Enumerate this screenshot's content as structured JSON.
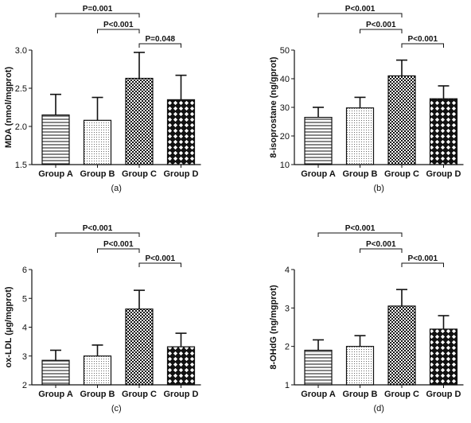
{
  "chart_data": [
    {
      "type": "bar",
      "panel_label": "(a)",
      "ylabel": "MDA (nmol/mgprot)",
      "categories": [
        "Group A",
        "Group B",
        "Group C",
        "Group D"
      ],
      "values": [
        2.15,
        2.08,
        2.63,
        2.35
      ],
      "errors": [
        0.27,
        0.3,
        0.34,
        0.32
      ],
      "ylim": [
        1.5,
        3.0
      ],
      "yticks": [
        "1.5",
        "2.0",
        "2.5",
        "3.0"
      ],
      "patterns": [
        "hlines",
        "dots",
        "checker",
        "diamond"
      ],
      "significance": [
        {
          "from": 0,
          "to": 2,
          "label": "P=0.001"
        },
        {
          "from": 1,
          "to": 2,
          "label": "P<0.001"
        },
        {
          "from": 2,
          "to": 3,
          "label": "P=0.048"
        }
      ]
    },
    {
      "type": "bar",
      "panel_label": "(b)",
      "ylabel": "8-isoprostane (ng/gprot)",
      "categories": [
        "Group A",
        "Group B",
        "Group C",
        "Group D"
      ],
      "values": [
        26.5,
        29.8,
        41.0,
        33.0
      ],
      "errors": [
        3.5,
        3.7,
        5.5,
        4.5
      ],
      "ylim": [
        10,
        50
      ],
      "yticks": [
        "10",
        "20",
        "30",
        "40",
        "50"
      ],
      "patterns": [
        "hlines",
        "dots",
        "checker",
        "diamond"
      ],
      "significance": [
        {
          "from": 0,
          "to": 2,
          "label": "P<0.001"
        },
        {
          "from": 1,
          "to": 2,
          "label": "P<0.001"
        },
        {
          "from": 2,
          "to": 3,
          "label": "P<0.001"
        }
      ]
    },
    {
      "type": "bar",
      "panel_label": "(c)",
      "ylabel": "ox-LDL (µg/mgprot)",
      "categories": [
        "Group A",
        "Group B",
        "Group C",
        "Group D"
      ],
      "values": [
        2.85,
        3.0,
        4.63,
        3.32
      ],
      "errors": [
        0.35,
        0.38,
        0.65,
        0.47
      ],
      "ylim": [
        2,
        6
      ],
      "yticks": [
        "2",
        "3",
        "4",
        "5",
        "6"
      ],
      "patterns": [
        "hlines",
        "dots",
        "checker",
        "diamond"
      ],
      "significance": [
        {
          "from": 0,
          "to": 2,
          "label": "P<0.001"
        },
        {
          "from": 1,
          "to": 2,
          "label": "P<0.001"
        },
        {
          "from": 2,
          "to": 3,
          "label": "P<0.001"
        }
      ]
    },
    {
      "type": "bar",
      "panel_label": "(d)",
      "ylabel": "8-OHdG (ng/mgprot)",
      "categories": [
        "Group A",
        "Group B",
        "Group C",
        "Group D"
      ],
      "values": [
        1.9,
        2.0,
        3.05,
        2.45
      ],
      "errors": [
        0.27,
        0.28,
        0.43,
        0.35
      ],
      "ylim": [
        1,
        4
      ],
      "yticks": [
        "1",
        "2",
        "3",
        "4"
      ],
      "patterns": [
        "hlines",
        "dots",
        "checker",
        "diamond"
      ],
      "significance": [
        {
          "from": 0,
          "to": 2,
          "label": "P<0.001"
        },
        {
          "from": 1,
          "to": 2,
          "label": "P<0.001"
        },
        {
          "from": 2,
          "to": 3,
          "label": "P<0.001"
        }
      ]
    }
  ]
}
